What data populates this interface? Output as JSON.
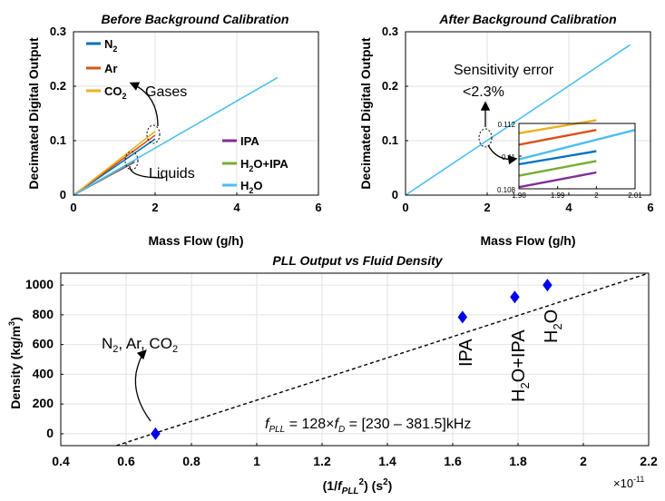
{
  "chart_data": [
    {
      "type": "line",
      "title": "Before Background Calibration",
      "xlabel": "Mass Flow (g/h)",
      "ylabel": "Decimated Digital Output",
      "xlim": [
        0,
        6
      ],
      "ylim": [
        0,
        0.3
      ],
      "xticks": [
        0,
        2,
        4,
        6
      ],
      "yticks": [
        0,
        0.1,
        0.2,
        0.3
      ],
      "grid": true,
      "series": [
        {
          "name": "N2",
          "color": "#0072bd",
          "x": [
            0,
            2
          ],
          "y": [
            0,
            0.103
          ]
        },
        {
          "name": "Ar",
          "color": "#d95319",
          "x": [
            0,
            2
          ],
          "y": [
            0,
            0.11
          ]
        },
        {
          "name": "CO2",
          "color": "#edb120",
          "x": [
            0,
            2
          ],
          "y": [
            0,
            0.117
          ]
        },
        {
          "name": "IPA",
          "color": "#7e2f8e",
          "x": [
            0,
            1.5
          ],
          "y": [
            0,
            0.061
          ]
        },
        {
          "name": "H2O+IPA",
          "color": "#77ac30",
          "x": [
            0,
            1.5
          ],
          "y": [
            0,
            0.063
          ]
        },
        {
          "name": "H2O",
          "color": "#4dbeee",
          "x": [
            0,
            5
          ],
          "y": [
            0,
            0.216
          ]
        }
      ],
      "legend_gases": [
        {
          "label": "N",
          "sub": "2",
          "color": "#0072bd"
        },
        {
          "label": "Ar",
          "sub": "",
          "color": "#d95319"
        },
        {
          "label": "CO",
          "sub": "2",
          "color": "#edb120"
        }
      ],
      "legend_liquids": [
        {
          "label": "IPA",
          "color": "#7e2f8e"
        },
        {
          "label": "H2O+IPA",
          "color": "#77ac30"
        },
        {
          "label": "H2O",
          "color": "#4dbeee"
        }
      ],
      "annotations": {
        "gases": "Gases",
        "liquids": "Liquids"
      }
    },
    {
      "type": "line",
      "title": "After Background Calibration",
      "xlabel": "Mass Flow (g/h)",
      "ylabel": "Decimated Digital Output",
      "xlim": [
        0,
        6
      ],
      "ylim": [
        0,
        0.3
      ],
      "xticks": [
        0,
        2,
        4,
        6
      ],
      "yticks": [
        0,
        0.1,
        0.2,
        0.3
      ],
      "grid": true,
      "series": [
        {
          "name": "H2O",
          "color": "#4dbeee",
          "x": [
            0,
            5.5
          ],
          "y": [
            0,
            0.276
          ]
        }
      ],
      "annotation": {
        "line1": "Sensitivity error",
        "line2": "<2.3%"
      },
      "inset": {
        "xlim": [
          1.98,
          2.01
        ],
        "ylim": [
          0.108,
          0.112
        ],
        "xticks": [
          1.98,
          1.99,
          2,
          2.01
        ],
        "yticks": [
          0.108,
          0.11,
          0.112
        ],
        "series": [
          {
            "name": "CO2",
            "color": "#edb120",
            "x": [
              1.98,
              2
            ],
            "y": [
              0.1114,
              0.1122
            ]
          },
          {
            "name": "Ar",
            "color": "#d95319",
            "x": [
              1.98,
              2
            ],
            "y": [
              0.1107,
              0.1116
            ]
          },
          {
            "name": "H2O",
            "color": "#4dbeee",
            "x": [
              1.98,
              2.01
            ],
            "y": [
              0.1098,
              0.1116
            ]
          },
          {
            "name": "N2",
            "color": "#0072bd",
            "x": [
              1.98,
              2
            ],
            "y": [
              0.1095,
              0.1103
            ]
          },
          {
            "name": "H2O+IPA",
            "color": "#77ac30",
            "x": [
              1.98,
              2
            ],
            "y": [
              0.1088,
              0.1097
            ]
          },
          {
            "name": "IPA",
            "color": "#7e2f8e",
            "x": [
              1.98,
              2
            ],
            "y": [
              0.1081,
              0.109
            ]
          }
        ]
      }
    },
    {
      "type": "scatter",
      "title": "PLL Output vs Fluid Density",
      "xlabel": "(1/fPLL2) (s2)",
      "ylabel": "Density (kg/m3)",
      "x_multiplier": "×10-11",
      "xlim": [
        0.4,
        2.2
      ],
      "ylim": [
        -80,
        1080
      ],
      "xticks": [
        0.4,
        0.6,
        0.8,
        1,
        1.2,
        1.4,
        1.6,
        1.8,
        2,
        2.2
      ],
      "yticks": [
        0,
        200,
        400,
        600,
        800,
        1000
      ],
      "grid": true,
      "points": [
        {
          "label": "N2, Ar, CO2",
          "x": 0.69,
          "y": 0
        },
        {
          "label": "IPA",
          "x": 1.63,
          "y": 785
        },
        {
          "label": "H2O+IPA",
          "x": 1.79,
          "y": 920
        },
        {
          "label": "H2O",
          "x": 1.89,
          "y": 1000
        }
      ],
      "fit_line": {
        "x": [
          0.57,
          2.2
        ],
        "y": [
          -80,
          1080
        ]
      },
      "equation": "fPLL = 128×fD = [230 – 381.5]kHz"
    }
  ],
  "text": {
    "title1": "Before Background Calibration",
    "title2": "After Background Calibration",
    "title3": "PLL Output vs Fluid Density",
    "xlabel_top": "Mass Flow (g/h)",
    "ylabel_top": "Decimated Digital Output",
    "gases": "Gases",
    "liquids": "Liquids",
    "sens1": "Sensitivity error",
    "sens2": "<2.3%",
    "ylabel_bottom_main": "Density (kg/m",
    "ylabel_bottom_sup": "3",
    "ylabel_bottom_end": ")",
    "gas_label_n": "N",
    "gas_label_sub": "2",
    "gas_label_rest1": ", Ar, CO",
    "gas_label_sub2": "2",
    "pt_ipa": "IPA",
    "pt_h2oipa_a": "H",
    "pt_h2oipa_sub": "2",
    "pt_h2oipa_b": "O+IPA",
    "pt_h2o_a": "H",
    "pt_h2o_sub": "2",
    "pt_h2o_b": "O",
    "eq_f": "f",
    "eq_sub1": "PLL",
    "eq_mid": " = 128×",
    "eq_f2": "f",
    "eq_sub2": "D",
    "eq_end": " = [230 – 381.5]kHz",
    "xlabel_b_open": "(1/",
    "xlabel_b_f": "f",
    "xlabel_b_sub": "PLL",
    "xlabel_b_sup": "2",
    "xlabel_b_close": ") (s",
    "xlabel_b_sup2": "2",
    "xlabel_b_end": ")",
    "mult_base": "×10",
    "mult_exp": "-11"
  }
}
